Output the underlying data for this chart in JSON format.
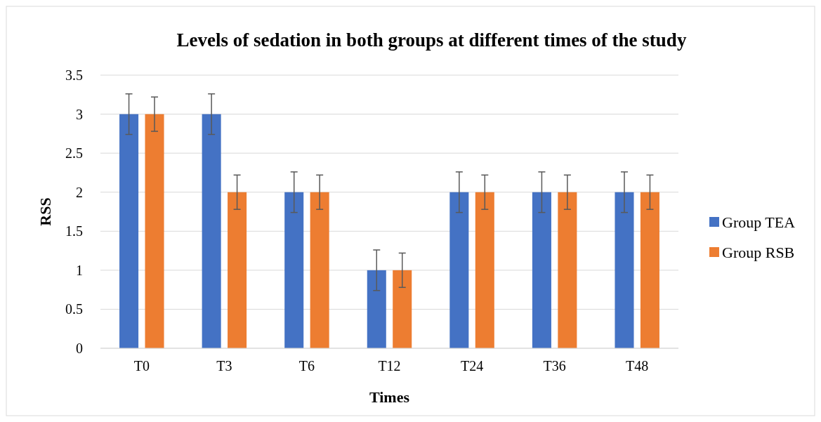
{
  "chart_data": {
    "type": "bar",
    "title": "Levels of sedation in both groups at different times of the study",
    "xlabel": "Times",
    "ylabel": "RSS",
    "categories": [
      "T0",
      "T3",
      "T6",
      "T12",
      "T24",
      "T36",
      "T48"
    ],
    "series": [
      {
        "name": "Group TEA",
        "color": "#4472c4",
        "values": [
          3,
          3,
          2,
          1,
          2,
          2,
          2
        ],
        "errors": [
          0.26,
          0.26,
          0.26,
          0.26,
          0.26,
          0.26,
          0.26
        ]
      },
      {
        "name": "Group RSB",
        "color": "#ed7d31",
        "values": [
          3,
          2,
          2,
          1,
          2,
          2,
          2
        ],
        "errors": [
          0.22,
          0.22,
          0.22,
          0.22,
          0.22,
          0.22,
          0.22
        ]
      }
    ],
    "ylim": [
      0,
      3.5
    ],
    "yticks": [
      0,
      0.5,
      1,
      1.5,
      2,
      2.5,
      3,
      3.5
    ],
    "grid": "y",
    "legend": "right"
  }
}
